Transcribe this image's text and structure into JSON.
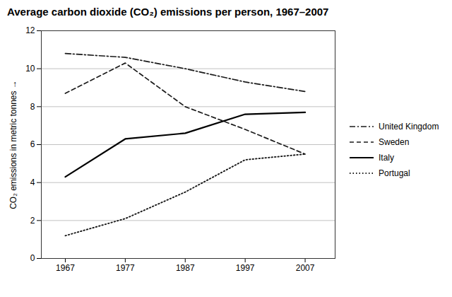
{
  "chart_data": {
    "type": "line",
    "title": "Average carbon dioxide (CO₂) emissions per person, 1967–2007",
    "ylabel": "CO₂ emissions in metric tonnes",
    "x": [
      1967,
      1977,
      1987,
      1997,
      2007
    ],
    "series": [
      {
        "name": "United Kingdom",
        "color": "#1a1a1a",
        "line_style": "dashdot",
        "values": [
          10.8,
          10.6,
          10.0,
          9.3,
          8.8
        ]
      },
      {
        "name": "Sweden",
        "color": "#1a1a1a",
        "line_style": "dashed",
        "values": [
          8.7,
          10.3,
          8.0,
          6.8,
          5.5
        ]
      },
      {
        "name": "Italy",
        "color": "#000000",
        "line_style": "solid",
        "values": [
          4.3,
          6.3,
          6.6,
          7.6,
          7.7
        ]
      },
      {
        "name": "Portugal",
        "color": "#1a1a1a",
        "line_style": "dotted",
        "values": [
          1.2,
          2.1,
          3.5,
          5.2,
          5.5
        ]
      }
    ],
    "xlim": [
      1963,
      2012
    ],
    "xticks": [
      1967,
      1977,
      1987,
      1997,
      2007
    ],
    "ylim": [
      0,
      12
    ],
    "yticks": [
      0,
      2,
      4,
      6,
      8,
      10,
      12
    ],
    "grid": "y",
    "legend": "right"
  }
}
